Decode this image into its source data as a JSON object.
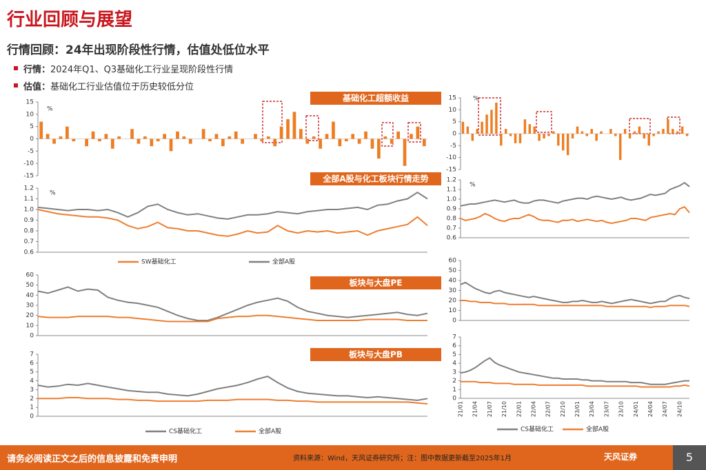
{
  "header": {
    "title": "行业回顾与展望",
    "subtitle": "行情回顾：24年出现阶段性行情，估值处低位水平"
  },
  "bullets": [
    {
      "label": "行情：",
      "text": "2024年Q1、Q3基础化工行业呈现阶段性行情"
    },
    {
      "label": "估值：",
      "text": "基础化工行业估值位于历史较低分位"
    }
  ],
  "footer": {
    "disclaimer": "请务必阅读正文之后的信息披露和免责申明",
    "source": "资料来源：Wind，天风证券研究所；注：图中数据更新截至2025年1月",
    "logo": "天风证券",
    "page": "5"
  },
  "chart_data": [
    {
      "type": "bar",
      "title": "基础化工超额收益",
      "annotation": "%",
      "color": "#ee7d22",
      "ylim": [
        -15,
        15
      ],
      "yticks": [
        -15,
        -10,
        -5,
        0,
        5,
        10,
        15
      ],
      "values": [
        7,
        2,
        -2,
        1,
        5,
        -1,
        0,
        -3,
        3,
        -1,
        2,
        -4,
        1,
        0,
        4,
        -2,
        1,
        -3,
        -1,
        2,
        -5,
        3,
        1,
        -2,
        0,
        4,
        -1,
        2,
        -3,
        1,
        3,
        -2,
        0,
        2,
        -1,
        1,
        -3,
        5,
        8,
        11,
        4,
        -2,
        1,
        -4,
        2,
        7,
        -3,
        -1,
        2,
        -2,
        3,
        -4,
        -8,
        1,
        -2,
        3,
        -11,
        2,
        5,
        -3
      ]
    },
    {
      "type": "line",
      "title": "全部A股与化工板块行情走势",
      "annotation": "%",
      "ylim": [
        0.6,
        1.2
      ],
      "yticks": [
        0.6,
        0.7,
        0.8,
        0.9,
        {
          "value": 1,
          "label": "1.0"
        },
        1.1,
        1.2
      ],
      "series": [
        {
          "name": "SW基础化工",
          "color": "#ed7d31",
          "values": [
            1.0,
            0.98,
            0.96,
            0.95,
            0.94,
            0.93,
            0.93,
            0.92,
            0.9,
            0.85,
            0.82,
            0.84,
            0.88,
            0.83,
            0.82,
            0.8,
            0.8,
            0.78,
            0.76,
            0.75,
            0.77,
            0.8,
            0.78,
            0.79,
            0.85,
            0.8,
            0.78,
            0.8,
            0.79,
            0.8,
            0.78,
            0.79,
            0.8,
            0.76,
            0.8,
            0.82,
            0.84,
            0.86,
            0.93,
            0.85
          ]
        },
        {
          "name": "全部A股",
          "color": "#7f7f7f",
          "values": [
            1.02,
            1.01,
            1.0,
            0.99,
            1.0,
            1.0,
            0.99,
            1.0,
            0.97,
            0.93,
            0.97,
            1.03,
            1.05,
            1.0,
            0.97,
            0.95,
            0.96,
            0.94,
            0.92,
            0.91,
            0.93,
            0.95,
            0.95,
            0.96,
            0.98,
            0.97,
            0.96,
            0.98,
            0.99,
            1.0,
            1.0,
            1.01,
            1.02,
            1.0,
            1.04,
            1.05,
            1.08,
            1.1,
            1.16,
            1.1
          ]
        }
      ]
    },
    {
      "type": "line",
      "title": "板块与大盘PE",
      "ylim": [
        0,
        60
      ],
      "yticks": [
        0,
        10,
        20,
        30,
        40,
        50,
        60
      ],
      "series": [
        {
          "color": "#7f7f7f",
          "values": [
            44,
            42,
            45,
            48,
            44,
            46,
            45,
            38,
            35,
            33,
            32,
            30,
            28,
            24,
            20,
            17,
            15,
            15,
            18,
            22,
            26,
            30,
            33,
            35,
            37,
            34,
            28,
            24,
            22,
            20,
            19,
            18,
            19,
            20,
            21,
            22,
            23,
            21,
            20,
            22
          ]
        },
        {
          "color": "#ed7d31",
          "values": [
            19,
            18,
            18,
            18,
            19,
            19,
            19,
            19,
            18,
            18,
            17,
            16,
            15,
            14,
            14,
            14,
            14,
            14,
            17,
            18,
            19,
            19,
            20,
            20,
            19,
            18,
            17,
            16,
            15,
            15,
            15,
            15,
            15,
            16,
            16,
            16,
            16,
            15,
            15,
            15
          ]
        }
      ]
    },
    {
      "type": "line",
      "title": "板块与大盘PB",
      "ylim": [
        0,
        7
      ],
      "yticks": [
        0,
        1,
        2,
        3,
        4,
        5,
        6,
        7
      ],
      "series": [
        {
          "name": "CS基础化工",
          "color": "#7f7f7f",
          "values": [
            3.5,
            3.3,
            3.4,
            3.6,
            3.5,
            3.7,
            3.5,
            3.3,
            3.1,
            2.9,
            2.8,
            2.7,
            2.7,
            2.5,
            2.4,
            2.3,
            2.5,
            2.8,
            3.1,
            3.3,
            3.5,
            3.8,
            4.2,
            4.5,
            3.8,
            3.2,
            2.8,
            2.6,
            2.5,
            2.4,
            2.3,
            2.3,
            2.2,
            2.1,
            2.2,
            2.1,
            2.0,
            1.9,
            1.8,
            2.0
          ]
        },
        {
          "name": "全部A股",
          "color": "#ed7d31",
          "values": [
            2.0,
            2.0,
            2.0,
            2.1,
            2.1,
            2.0,
            2.0,
            2.0,
            1.9,
            1.9,
            1.8,
            1.8,
            1.7,
            1.7,
            1.7,
            1.7,
            1.7,
            1.8,
            1.8,
            1.8,
            1.9,
            1.9,
            1.9,
            1.9,
            1.8,
            1.8,
            1.7,
            1.7,
            1.6,
            1.6,
            1.6,
            1.6,
            1.6,
            1.6,
            1.6,
            1.6,
            1.6,
            1.6,
            1.5,
            1.4
          ]
        }
      ]
    },
    {
      "type": "bar",
      "annotation": "%",
      "color": "#ee7d22",
      "ylim": [
        -15,
        15
      ],
      "yticks": [
        -15,
        -10,
        -5,
        0,
        5,
        10,
        15
      ],
      "values": [
        5,
        3,
        -3,
        2,
        5,
        8,
        10,
        13,
        -5,
        2,
        -1,
        -4,
        -4,
        6,
        4,
        3,
        -3,
        -2,
        -1,
        1,
        -5,
        -7,
        -9,
        -2,
        3,
        1,
        -1,
        2,
        -3,
        1,
        0,
        2,
        -1,
        -11,
        2,
        -2,
        1,
        3,
        -2,
        -5,
        -1,
        1,
        2,
        6,
        2,
        1,
        3,
        -1
      ]
    },
    {
      "type": "line",
      "annotation": "%",
      "ylim": [
        0.6,
        1.2
      ],
      "yticks": [
        0.6,
        0.7,
        0.8,
        0.9,
        {
          "value": 1,
          "label": "1.0"
        },
        1.1,
        1.2
      ],
      "series": [
        {
          "color": "#7f7f7f",
          "values": [
            0.93,
            0.94,
            0.95,
            0.95,
            0.96,
            0.97,
            0.98,
            0.99,
            0.98,
            0.97,
            0.98,
            0.99,
            0.97,
            0.96,
            0.96,
            0.98,
            0.99,
            0.99,
            0.98,
            0.97,
            0.96,
            0.98,
            0.99,
            1.0,
            1.01,
            1.01,
            1.0,
            1.02,
            1.03,
            1.02,
            1.01,
            1.0,
            1.01,
            1.02,
            1.0,
            0.99,
            1.0,
            1.01,
            1.03,
            1.05,
            1.04,
            1.05,
            1.06,
            1.1,
            1.12,
            1.14,
            1.17,
            1.13
          ]
        },
        {
          "color": "#ed7d31",
          "values": [
            0.8,
            0.78,
            0.79,
            0.8,
            0.82,
            0.85,
            0.83,
            0.8,
            0.78,
            0.77,
            0.79,
            0.8,
            0.8,
            0.82,
            0.84,
            0.82,
            0.79,
            0.78,
            0.78,
            0.77,
            0.76,
            0.78,
            0.78,
            0.79,
            0.77,
            0.78,
            0.79,
            0.78,
            0.77,
            0.78,
            0.76,
            0.75,
            0.76,
            0.77,
            0.78,
            0.8,
            0.8,
            0.79,
            0.78,
            0.81,
            0.82,
            0.83,
            0.84,
            0.85,
            0.84,
            0.9,
            0.92,
            0.86
          ]
        }
      ]
    },
    {
      "type": "line",
      "ylim": [
        0,
        60
      ],
      "yticks": [
        0,
        10,
        20,
        30,
        40,
        50,
        60
      ],
      "series": [
        {
          "color": "#7f7f7f",
          "values": [
            36,
            38,
            35,
            32,
            30,
            28,
            27,
            29,
            30,
            28,
            27,
            26,
            25,
            24,
            23,
            24,
            23,
            22,
            21,
            20,
            19,
            18,
            18,
            19,
            19,
            20,
            19,
            18,
            18,
            19,
            18,
            17,
            18,
            19,
            20,
            21,
            20,
            19,
            18,
            17,
            18,
            19,
            19,
            22,
            24,
            25,
            23,
            22
          ]
        },
        {
          "color": "#ed7d31",
          "values": [
            20,
            20,
            19,
            19,
            18,
            18,
            18,
            17,
            17,
            17,
            16,
            16,
            16,
            16,
            16,
            16,
            15,
            15,
            15,
            15,
            15,
            15,
            15,
            15,
            15,
            15,
            15,
            15,
            15,
            15,
            14,
            14,
            14,
            14,
            14,
            14,
            14,
            14,
            14,
            13,
            14,
            14,
            14,
            15,
            15,
            15,
            15,
            14
          ]
        }
      ]
    },
    {
      "type": "line",
      "ylim": [
        0,
        7
      ],
      "yticks": [
        0,
        1,
        2,
        3,
        4,
        5,
        6,
        7
      ],
      "categories": [
        "21/01",
        null,
        null,
        "21/04",
        null,
        null,
        "21/07",
        null,
        null,
        "21/10",
        null,
        null,
        "22/01",
        null,
        null,
        "22/04",
        null,
        null,
        "22/07",
        null,
        null,
        "22/10",
        null,
        null,
        "23/01",
        null,
        null,
        "23/04",
        null,
        null,
        "23/07",
        null,
        null,
        "23/10",
        null,
        null,
        "24/01",
        null,
        null,
        "24/04",
        null,
        null,
        "24/07",
        null,
        null,
        "24/10",
        null,
        null
      ],
      "series": [
        {
          "name": "CS基础化工",
          "color": "#7f7f7f",
          "values": [
            2.9,
            3.0,
            3.2,
            3.5,
            3.9,
            4.3,
            4.6,
            4.1,
            3.8,
            3.6,
            3.4,
            3.2,
            3.0,
            2.9,
            2.8,
            2.7,
            2.6,
            2.5,
            2.4,
            2.3,
            2.3,
            2.2,
            2.2,
            2.2,
            2.2,
            2.1,
            2.1,
            2.0,
            2.0,
            2.0,
            1.9,
            1.9,
            1.9,
            1.9,
            1.9,
            1.8,
            1.8,
            1.8,
            1.7,
            1.6,
            1.6,
            1.6,
            1.6,
            1.7,
            1.8,
            1.9,
            2.0,
            2.0
          ]
        },
        {
          "name": "全部A股",
          "color": "#ed7d31",
          "values": [
            1.9,
            1.9,
            1.9,
            1.9,
            1.8,
            1.8,
            1.8,
            1.7,
            1.7,
            1.7,
            1.7,
            1.6,
            1.6,
            1.6,
            1.6,
            1.6,
            1.5,
            1.5,
            1.5,
            1.5,
            1.5,
            1.5,
            1.5,
            1.5,
            1.5,
            1.5,
            1.4,
            1.4,
            1.4,
            1.4,
            1.4,
            1.4,
            1.4,
            1.4,
            1.4,
            1.4,
            1.4,
            1.3,
            1.3,
            1.3,
            1.3,
            1.3,
            1.3,
            1.3,
            1.4,
            1.4,
            1.5,
            1.4
          ]
        }
      ]
    }
  ]
}
